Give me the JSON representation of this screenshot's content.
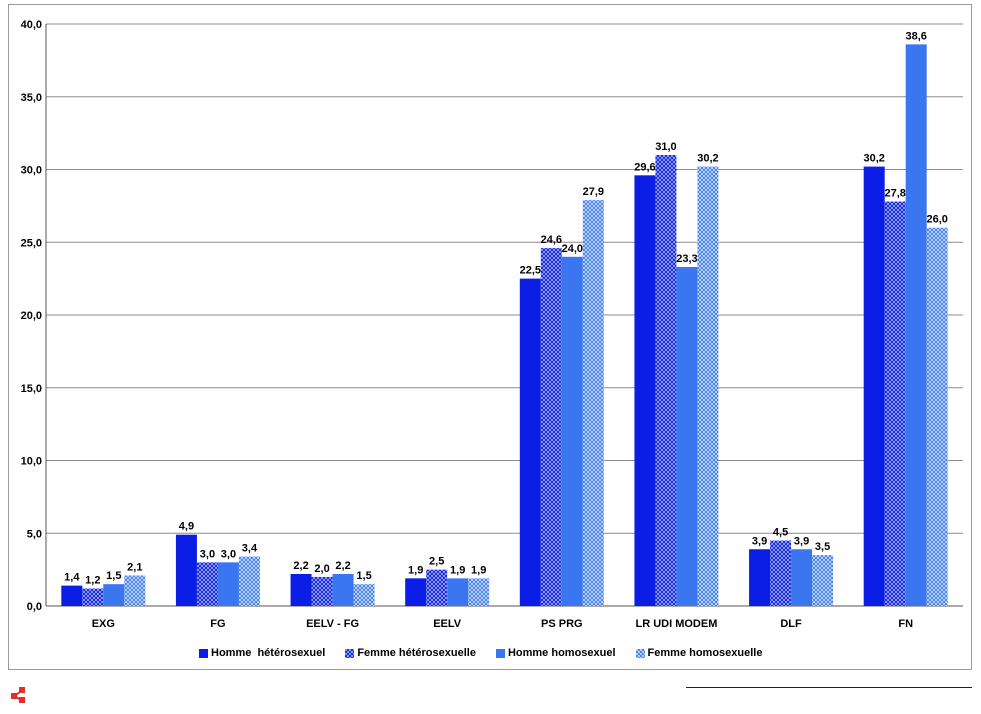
{
  "chart_data": {
    "type": "bar",
    "categories": [
      "EXG",
      "FG",
      "EELV - FG",
      "EELV",
      "PS PRG",
      "LR UDI MODEM",
      "DLF",
      "FN"
    ],
    "series": [
      {
        "name": "Homme  hétérosexuel",
        "color": "#0a1ee6",
        "pattern": "solid",
        "values": [
          1.4,
          4.9,
          2.2,
          1.9,
          22.5,
          29.6,
          3.9,
          30.2
        ],
        "labels": [
          "1,4",
          "4,9",
          "2,2",
          "1,9",
          "22,5",
          "29,6",
          "3,9",
          "30,2"
        ]
      },
      {
        "name": "Femme hétérosexuelle",
        "color": "#1a2ee0",
        "pattern": "checker",
        "values": [
          1.2,
          3.0,
          2.0,
          2.5,
          24.6,
          31.0,
          4.5,
          27.8
        ],
        "labels": [
          "1,2",
          "3,0",
          "2,0",
          "2,5",
          "24,6",
          "31,0",
          "4,5",
          "27,8"
        ]
      },
      {
        "name": "Homme homosexuel",
        "color": "#3a76f0",
        "pattern": "solid",
        "values": [
          1.5,
          3.0,
          2.2,
          1.9,
          24.0,
          23.3,
          3.9,
          38.6
        ],
        "labels": [
          "1,5",
          "3,0",
          "2,2",
          "1,9",
          "24,0",
          "23,3",
          "3,9",
          "38,6"
        ]
      },
      {
        "name": "Femme homosexuelle",
        "color": "#4a86f2",
        "pattern": "dots",
        "values": [
          2.1,
          3.4,
          1.5,
          1.9,
          27.9,
          30.2,
          3.5,
          26.0
        ],
        "labels": [
          "2,1",
          "3,4",
          "1,5",
          "1,9",
          "27,9",
          "30,2",
          "3,5",
          "26,0"
        ]
      }
    ],
    "yticks": [
      0,
      5,
      10,
      15,
      20,
      25,
      30,
      35,
      40
    ],
    "ytick_labels": [
      "0,0",
      "5,0",
      "10,0",
      "15,0",
      "20,0",
      "25,0",
      "30,0",
      "35,0",
      "40,0"
    ],
    "ylim": [
      0,
      40
    ],
    "grid": true,
    "legend_position": "bottom"
  },
  "branding": {
    "logo_icon": "red-network-logo-icon"
  }
}
